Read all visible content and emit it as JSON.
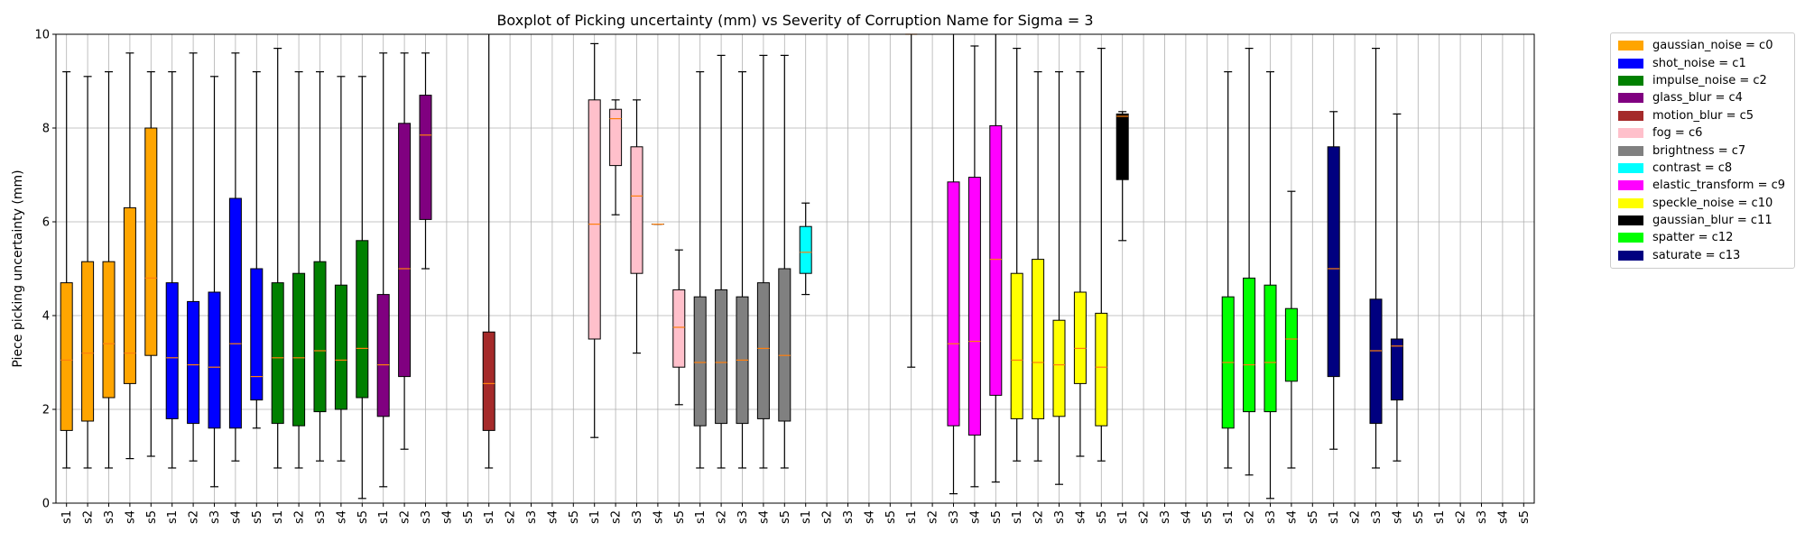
{
  "chart_data": {
    "type": "boxplot",
    "title": "Boxplot of Picking uncertainty (mm) vs Severity of Corruption Name for Sigma = 3",
    "xlabel": "",
    "ylabel": "Piece picking uncertainty (mm)",
    "ylim": [
      0,
      10
    ],
    "yticks": [
      "0",
      "2",
      "4",
      "6",
      "8",
      "10"
    ],
    "grid": true,
    "legend_position": "outside-right",
    "categories": [
      "s1",
      "s2",
      "s3",
      "s4",
      "s5",
      "s1",
      "s2",
      "s3",
      "s4",
      "s5",
      "s1",
      "s2",
      "s3",
      "s4",
      "s5",
      "s1",
      "s2",
      "s3",
      "s4",
      "s5",
      "s1",
      "s2",
      "s3",
      "s4",
      "s5",
      "s1",
      "s2",
      "s3",
      "s4",
      "s5",
      "s1",
      "s2",
      "s3",
      "s4",
      "s5",
      "s1",
      "s2",
      "s3",
      "s4",
      "s5",
      "s1",
      "s2",
      "s3",
      "s4",
      "s5",
      "s1",
      "s2",
      "s3",
      "s4",
      "s5",
      "s1",
      "s2",
      "s3",
      "s4",
      "s5",
      "s1",
      "s2",
      "s3",
      "s4",
      "s5",
      "s1",
      "s2",
      "s3",
      "s4",
      "s5",
      "s1",
      "s2",
      "s3",
      "s4",
      "s5"
    ],
    "series": [
      {
        "name": "gaussian_noise = c0",
        "color": "#FFA500",
        "boxes": [
          {
            "min": 0.75,
            "q1": 1.55,
            "med": 3.05,
            "q3": 4.7,
            "max": 9.2
          },
          {
            "min": 0.75,
            "q1": 1.75,
            "med": 3.2,
            "q3": 5.15,
            "max": 9.1
          },
          {
            "min": 0.75,
            "q1": 2.25,
            "med": 3.4,
            "q3": 5.15,
            "max": 9.2
          },
          {
            "min": 0.95,
            "q1": 2.55,
            "med": 3.2,
            "q3": 6.3,
            "max": 9.6
          },
          {
            "min": 1.0,
            "q1": 3.15,
            "med": 4.8,
            "q3": 8.0,
            "max": 9.2
          }
        ]
      },
      {
        "name": "shot_noise = c1",
        "color": "#0000FF",
        "boxes": [
          {
            "min": 0.75,
            "q1": 1.8,
            "med": 3.1,
            "q3": 4.7,
            "max": 9.2
          },
          {
            "min": 0.9,
            "q1": 1.7,
            "med": 2.95,
            "q3": 4.3,
            "max": 9.6
          },
          {
            "min": 0.35,
            "q1": 1.6,
            "med": 2.9,
            "q3": 4.5,
            "max": 9.1
          },
          {
            "min": 0.9,
            "q1": 1.6,
            "med": 3.4,
            "q3": 6.5,
            "max": 9.6
          },
          {
            "min": 1.6,
            "q1": 2.2,
            "med": 2.7,
            "q3": 5.0,
            "max": 9.2
          }
        ]
      },
      {
        "name": "impulse_noise = c2",
        "color": "#008000",
        "boxes": [
          {
            "min": 0.75,
            "q1": 1.7,
            "med": 3.1,
            "q3": 4.7,
            "max": 9.7
          },
          {
            "min": 0.75,
            "q1": 1.65,
            "med": 3.1,
            "q3": 4.9,
            "max": 9.2
          },
          {
            "min": 0.9,
            "q1": 1.95,
            "med": 3.25,
            "q3": 5.15,
            "max": 9.2
          },
          {
            "min": 0.9,
            "q1": 2.0,
            "med": 3.05,
            "q3": 4.65,
            "max": 9.1
          },
          {
            "min": 0.1,
            "q1": 2.25,
            "med": 3.3,
            "q3": 5.6,
            "max": 9.1
          }
        ]
      },
      {
        "name": "glass_blur = c4",
        "color": "#800080",
        "boxes": [
          {
            "min": 0.35,
            "q1": 1.85,
            "med": 2.95,
            "q3": 4.45,
            "max": 9.6
          },
          {
            "min": 1.15,
            "q1": 2.7,
            "med": 5.0,
            "q3": 8.1,
            "max": 9.6
          },
          {
            "min": 5.0,
            "q1": 6.05,
            "med": 7.85,
            "q3": 8.7,
            "max": 9.6
          },
          null,
          null
        ]
      },
      {
        "name": "motion_blur = c5",
        "color": "#A52A2A",
        "boxes": [
          {
            "min": 0.75,
            "q1": 1.55,
            "med": 2.55,
            "q3": 3.65,
            "max": 10.0
          },
          null,
          null,
          null,
          null
        ]
      },
      {
        "name": "fog = c6",
        "color": "#FFC0CB",
        "boxes": [
          {
            "min": 1.4,
            "q1": 3.5,
            "med": 5.95,
            "q3": 8.6,
            "max": 9.8
          },
          {
            "min": 6.15,
            "q1": 7.2,
            "med": 8.2,
            "q3": 8.4,
            "max": 8.6
          },
          {
            "min": 3.2,
            "q1": 4.9,
            "med": 6.55,
            "q3": 7.6,
            "max": 8.6
          },
          {
            "min": 5.95,
            "q1": 5.95,
            "med": 5.95,
            "q3": 5.95,
            "max": 5.95
          },
          {
            "min": 2.1,
            "q1": 2.9,
            "med": 3.75,
            "q3": 4.55,
            "max": 5.4
          }
        ]
      },
      {
        "name": "brightness = c7",
        "color": "#808080",
        "boxes": [
          {
            "min": 0.75,
            "q1": 1.65,
            "med": 3.0,
            "q3": 4.4,
            "max": 9.2
          },
          {
            "min": 0.75,
            "q1": 1.7,
            "med": 3.0,
            "q3": 4.55,
            "max": 9.55
          },
          {
            "min": 0.75,
            "q1": 1.7,
            "med": 3.05,
            "q3": 4.4,
            "max": 9.2
          },
          {
            "min": 0.75,
            "q1": 1.8,
            "med": 3.3,
            "q3": 4.7,
            "max": 9.55
          },
          {
            "min": 0.75,
            "q1": 1.75,
            "med": 3.15,
            "q3": 5.0,
            "max": 9.55
          }
        ]
      },
      {
        "name": "contrast = c8",
        "color": "#00FFFF",
        "boxes": [
          {
            "min": 4.45,
            "q1": 4.9,
            "med": 5.35,
            "q3": 5.9,
            "max": 6.4
          },
          null,
          null,
          null,
          null
        ]
      },
      {
        "name": "elastic_transform = c9",
        "color": "#FF00FF",
        "boxes": [
          {
            "min": 2.9,
            "q1": 10.0,
            "med": 10.0,
            "q3": 10.0,
            "max": 10.0
          },
          null,
          {
            "min": 0.2,
            "q1": 1.65,
            "med": 3.4,
            "q3": 6.85,
            "max": 10.0
          },
          {
            "min": 0.35,
            "q1": 1.45,
            "med": 3.45,
            "q3": 6.95,
            "max": 9.75
          },
          {
            "min": 0.45,
            "q1": 2.3,
            "med": 5.2,
            "q3": 8.05,
            "max": 10.0
          }
        ]
      },
      {
        "name": "speckle_noise = c10",
        "color": "#FFFF00",
        "boxes": [
          {
            "min": 0.9,
            "q1": 1.8,
            "med": 3.05,
            "q3": 4.9,
            "max": 9.7
          },
          {
            "min": 0.9,
            "q1": 1.8,
            "med": 3.0,
            "q3": 5.2,
            "max": 9.2
          },
          {
            "min": 0.4,
            "q1": 1.85,
            "med": 2.95,
            "q3": 3.9,
            "max": 9.2
          },
          {
            "min": 1.0,
            "q1": 2.55,
            "med": 3.3,
            "q3": 4.5,
            "max": 9.2
          },
          {
            "min": 0.9,
            "q1": 1.65,
            "med": 2.9,
            "q3": 4.05,
            "max": 9.7
          }
        ]
      },
      {
        "name": "gaussian_blur = c11",
        "color": "#000000",
        "boxes": [
          {
            "min": 5.6,
            "q1": 6.9,
            "med": 8.25,
            "q3": 8.3,
            "max": 8.35
          },
          null,
          null,
          null,
          null
        ]
      },
      {
        "name": "spatter = c12",
        "color": "#00FF00",
        "boxes": [
          {
            "min": 0.75,
            "q1": 1.6,
            "med": 3.0,
            "q3": 4.4,
            "max": 9.2
          },
          {
            "min": 0.6,
            "q1": 1.95,
            "med": 2.95,
            "q3": 4.8,
            "max": 9.7
          },
          {
            "min": 0.1,
            "q1": 1.95,
            "med": 3.0,
            "q3": 4.65,
            "max": 9.2
          },
          {
            "min": 0.75,
            "q1": 2.6,
            "med": 3.5,
            "q3": 4.15,
            "max": 6.65
          },
          null
        ]
      },
      {
        "name": "saturate = c13",
        "color": "#000080",
        "boxes": [
          {
            "min": 1.15,
            "q1": 2.7,
            "med": 5.0,
            "q3": 7.6,
            "max": 8.35
          },
          null,
          {
            "min": 0.75,
            "q1": 1.7,
            "med": 3.25,
            "q3": 4.35,
            "max": 9.7
          },
          {
            "min": 0.9,
            "q1": 2.2,
            "med": 3.35,
            "q3": 3.5,
            "max": 8.3
          },
          null
        ]
      }
    ]
  }
}
